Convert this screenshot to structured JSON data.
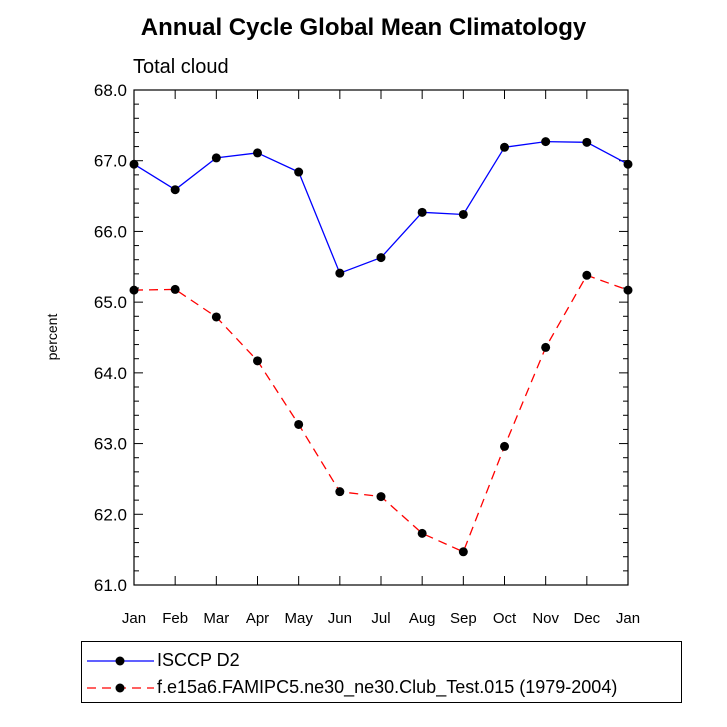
{
  "chart_data": {
    "type": "line",
    "title": "Annual Cycle Global Mean Climatology",
    "subtitle": "Total cloud",
    "ylabel": "percent",
    "xlabel": "",
    "categories": [
      "Jan",
      "Feb",
      "Mar",
      "Apr",
      "May",
      "Jun",
      "Jul",
      "Aug",
      "Sep",
      "Oct",
      "Nov",
      "Dec",
      "Jan"
    ],
    "ylim": [
      61.0,
      68.0
    ],
    "yticks": [
      "61.0",
      "62.0",
      "63.0",
      "64.0",
      "65.0",
      "66.0",
      "67.0",
      "68.0"
    ],
    "series": [
      {
        "name": "ISCCP D2",
        "color": "#0000ff",
        "dash": "solid",
        "values": [
          66.95,
          66.59,
          67.04,
          67.11,
          66.84,
          65.41,
          65.63,
          66.27,
          66.24,
          67.19,
          67.27,
          67.26,
          66.95
        ]
      },
      {
        "name": "f.e15a6.FAMIPC5.ne30_ne30.Club_Test.015 (1979-2004)",
        "color": "#ff0000",
        "dash": "dashed",
        "values": [
          65.17,
          65.18,
          64.79,
          64.17,
          63.27,
          62.32,
          62.25,
          61.73,
          61.47,
          62.96,
          64.36,
          65.38,
          65.17
        ]
      }
    ]
  }
}
